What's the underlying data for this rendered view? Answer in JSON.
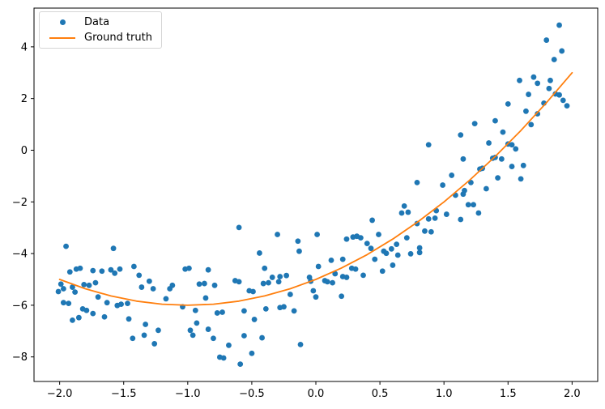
{
  "chart_data": {
    "type": "scatter",
    "title": "",
    "xlabel": "",
    "ylabel": "",
    "xlim": [
      -2.2,
      2.2
    ],
    "ylim": [
      -8.95,
      5.5
    ],
    "grid": false,
    "axis_color": "#000000",
    "x_ticks": [
      {
        "v": -2.0,
        "label": "−2.0"
      },
      {
        "v": -1.5,
        "label": "−1.5"
      },
      {
        "v": -1.0,
        "label": "−1.0"
      },
      {
        "v": -0.5,
        "label": "−0.5"
      },
      {
        "v": 0.0,
        "label": "0.0"
      },
      {
        "v": 0.5,
        "label": "0.5"
      },
      {
        "v": 1.0,
        "label": "1.0"
      },
      {
        "v": 1.5,
        "label": "1.5"
      },
      {
        "v": 2.0,
        "label": "2.0"
      }
    ],
    "y_ticks": [
      {
        "v": 4,
        "label": "4"
      },
      {
        "v": 2,
        "label": "2"
      },
      {
        "v": 0,
        "label": "0"
      },
      {
        "v": -2,
        "label": "−2"
      },
      {
        "v": -4,
        "label": "−4"
      },
      {
        "v": -6,
        "label": "−6"
      },
      {
        "v": -8,
        "label": "−8"
      }
    ],
    "legend": {
      "position": "upper left",
      "entries": [
        {
          "label": "Data",
          "type": "marker",
          "color": "#1f77b4"
        },
        {
          "label": "Ground truth",
          "type": "line",
          "color": "#ff7f0e"
        }
      ]
    },
    "series": [
      {
        "name": "Data",
        "type": "scatter",
        "color": "#1f77b4",
        "marker_radius": 3.4,
        "points": [
          [
            -1.92,
            -4.71
          ],
          [
            -1.87,
            -4.6
          ],
          [
            -1.84,
            -4.57
          ],
          [
            -1.74,
            -4.66
          ],
          [
            -1.67,
            -4.68
          ],
          [
            -1.6,
            -4.63
          ],
          [
            -1.57,
            -4.76
          ],
          [
            -1.53,
            -4.6
          ],
          [
            -1.42,
            -4.5
          ],
          [
            -1.38,
            -4.84
          ],
          [
            -1.99,
            -5.18
          ],
          [
            -2.01,
            -5.47
          ],
          [
            -1.97,
            -5.36
          ],
          [
            -1.9,
            -5.3
          ],
          [
            -1.88,
            -5.49
          ],
          [
            -1.81,
            -5.2
          ],
          [
            -1.77,
            -5.23
          ],
          [
            -1.72,
            -5.13
          ],
          [
            -1.36,
            -5.3
          ],
          [
            -1.3,
            -5.07
          ],
          [
            -1.27,
            -5.36
          ],
          [
            -1.14,
            -5.36
          ],
          [
            -1.12,
            -5.23
          ],
          [
            -1.97,
            -5.9
          ],
          [
            -1.93,
            -5.93
          ],
          [
            -1.7,
            -5.68
          ],
          [
            -1.63,
            -5.9
          ],
          [
            -1.55,
            -6.01
          ],
          [
            -1.52,
            -5.96
          ],
          [
            -1.47,
            -5.93
          ],
          [
            -1.17,
            -5.75
          ],
          [
            -1.82,
            -6.14
          ],
          [
            -1.79,
            -6.2
          ],
          [
            -1.74,
            -6.32
          ],
          [
            -1.65,
            -6.45
          ],
          [
            -1.85,
            -6.48
          ],
          [
            -1.9,
            -6.58
          ],
          [
            -1.46,
            -6.53
          ],
          [
            -1.33,
            -6.74
          ],
          [
            -1.23,
            -6.97
          ],
          [
            -1.34,
            -7.16
          ],
          [
            -1.43,
            -7.28
          ],
          [
            -1.26,
            -7.49
          ],
          [
            -1.02,
            -4.6
          ],
          [
            -0.99,
            -4.57
          ],
          [
            -0.84,
            -4.63
          ],
          [
            -0.91,
            -5.18
          ],
          [
            -0.87,
            -5.16
          ],
          [
            -0.79,
            -5.23
          ],
          [
            -0.63,
            -5.05
          ],
          [
            -0.6,
            -5.09
          ],
          [
            -0.4,
            -4.57
          ],
          [
            -0.41,
            -5.16
          ],
          [
            -0.37,
            -5.13
          ],
          [
            -0.34,
            -4.92
          ],
          [
            -0.29,
            -5.09
          ],
          [
            -0.28,
            -4.89
          ],
          [
            -0.23,
            -4.85
          ],
          [
            -0.05,
            -4.92
          ],
          [
            -0.04,
            -5.07
          ],
          [
            -0.52,
            -5.44
          ],
          [
            -0.49,
            -5.47
          ],
          [
            -1.04,
            -6.06
          ],
          [
            -0.94,
            -6.2
          ],
          [
            -0.86,
            -5.72
          ],
          [
            -0.77,
            -6.3
          ],
          [
            -0.73,
            -6.27
          ],
          [
            -0.56,
            -6.22
          ],
          [
            -0.39,
            -6.14
          ],
          [
            -0.28,
            -6.09
          ],
          [
            -0.25,
            -6.06
          ],
          [
            -0.17,
            -6.22
          ],
          [
            -0.93,
            -6.69
          ],
          [
            -0.84,
            -6.93
          ],
          [
            -0.98,
            -6.97
          ],
          [
            -0.96,
            -7.16
          ],
          [
            -0.8,
            -7.28
          ],
          [
            -0.68,
            -7.55
          ],
          [
            -0.56,
            -7.18
          ],
          [
            -0.48,
            -6.55
          ],
          [
            -0.42,
            -7.26
          ],
          [
            -0.75,
            -8.01
          ],
          [
            -0.72,
            -8.04
          ],
          [
            -0.59,
            -8.28
          ],
          [
            -0.5,
            -7.86
          ],
          [
            -0.12,
            -7.52
          ],
          [
            -0.2,
            -5.58
          ],
          [
            0.02,
            -4.5
          ],
          [
            0.12,
            -4.26
          ],
          [
            0.28,
            -4.57
          ],
          [
            0.31,
            -4.6
          ],
          [
            0.07,
            -5.05
          ],
          [
            0.09,
            -5.09
          ],
          [
            0.13,
            -5.13
          ],
          [
            0.15,
            -4.78
          ],
          [
            0.21,
            -4.89
          ],
          [
            0.24,
            -4.92
          ],
          [
            0.37,
            -4.84
          ],
          [
            0.52,
            -4.68
          ],
          [
            0.6,
            -4.45
          ],
          [
            -0.02,
            -5.44
          ],
          [
            0.0,
            -5.68
          ],
          [
            0.2,
            -5.65
          ],
          [
            0.21,
            -4.22
          ],
          [
            0.46,
            -4.22
          ],
          [
            -1.95,
            -3.72
          ],
          [
            -1.58,
            -3.8
          ],
          [
            -0.6,
            -2.99
          ],
          [
            -0.3,
            -3.26
          ],
          [
            -0.14,
            -3.52
          ],
          [
            -0.13,
            -3.91
          ],
          [
            -0.44,
            -3.98
          ],
          [
            0.88,
            0.21
          ],
          [
            0.79,
            -1.25
          ],
          [
            0.99,
            -1.35
          ],
          [
            1.06,
            -0.97
          ],
          [
            0.69,
            -2.16
          ],
          [
            0.67,
            -2.43
          ],
          [
            0.72,
            -2.4
          ],
          [
            0.94,
            -2.34
          ],
          [
            0.88,
            -2.66
          ],
          [
            0.93,
            -2.63
          ],
          [
            1.02,
            -2.48
          ],
          [
            0.44,
            -2.71
          ],
          [
            0.79,
            -2.84
          ],
          [
            0.85,
            -3.13
          ],
          [
            0.9,
            -3.16
          ],
          [
            0.24,
            -3.44
          ],
          [
            0.29,
            -3.36
          ],
          [
            0.32,
            -3.33
          ],
          [
            0.35,
            -3.39
          ],
          [
            0.01,
            -3.26
          ],
          [
            0.4,
            -3.61
          ],
          [
            0.43,
            -3.8
          ],
          [
            0.49,
            -3.26
          ],
          [
            0.53,
            -3.91
          ],
          [
            0.55,
            -3.99
          ],
          [
            0.59,
            -3.82
          ],
          [
            0.63,
            -3.64
          ],
          [
            0.71,
            -3.39
          ],
          [
            0.64,
            -4.06
          ],
          [
            0.81,
            -3.78
          ],
          [
            0.81,
            -3.96
          ],
          [
            0.74,
            -4.01
          ],
          [
            1.35,
            0.28
          ],
          [
            1.5,
            0.24
          ],
          [
            1.53,
            0.21
          ],
          [
            1.56,
            0.05
          ],
          [
            1.15,
            -0.34
          ],
          [
            1.38,
            -0.31
          ],
          [
            1.4,
            -0.28
          ],
          [
            1.45,
            -0.34
          ],
          [
            1.28,
            -0.73
          ],
          [
            1.3,
            -0.7
          ],
          [
            1.53,
            -0.63
          ],
          [
            1.62,
            -0.59
          ],
          [
            1.42,
            -1.07
          ],
          [
            1.6,
            -1.11
          ],
          [
            1.21,
            -1.25
          ],
          [
            1.33,
            -1.49
          ],
          [
            1.16,
            -1.56
          ],
          [
            1.09,
            -1.74
          ],
          [
            1.15,
            -1.7
          ],
          [
            1.19,
            -2.11
          ],
          [
            1.23,
            -2.11
          ],
          [
            1.27,
            -2.43
          ],
          [
            1.13,
            -2.68
          ],
          [
            1.13,
            0.59
          ],
          [
            1.46,
            0.7
          ],
          [
            1.9,
            4.84
          ],
          [
            1.8,
            4.26
          ],
          [
            1.92,
            3.84
          ],
          [
            1.86,
            3.51
          ],
          [
            1.59,
            2.7
          ],
          [
            1.7,
            2.83
          ],
          [
            1.73,
            2.59
          ],
          [
            1.83,
            2.7
          ],
          [
            1.66,
            2.16
          ],
          [
            1.82,
            2.39
          ],
          [
            1.87,
            2.18
          ],
          [
            1.9,
            2.14
          ],
          [
            1.78,
            1.82
          ],
          [
            1.93,
            1.93
          ],
          [
            1.96,
            1.72
          ],
          [
            1.5,
            1.79
          ],
          [
            1.64,
            1.51
          ],
          [
            1.73,
            1.41
          ],
          [
            1.68,
            0.99
          ],
          [
            1.4,
            1.14
          ],
          [
            1.24,
            1.03
          ]
        ]
      },
      {
        "name": "Ground truth",
        "type": "line",
        "color": "#ff7f0e",
        "line_width": 1.8,
        "equation": "y = x^2 + 2x - 5",
        "points": [
          [
            -2.0,
            -5.0
          ],
          [
            -1.8,
            -5.36
          ],
          [
            -1.6,
            -5.64
          ],
          [
            -1.4,
            -5.84
          ],
          [
            -1.2,
            -5.96
          ],
          [
            -1.0,
            -6.0
          ],
          [
            -0.8,
            -5.96
          ],
          [
            -0.6,
            -5.84
          ],
          [
            -0.4,
            -5.64
          ],
          [
            -0.2,
            -5.36
          ],
          [
            0.0,
            -5.0
          ],
          [
            0.2,
            -4.56
          ],
          [
            0.4,
            -4.04
          ],
          [
            0.6,
            -3.44
          ],
          [
            0.8,
            -2.76
          ],
          [
            1.0,
            -2.0
          ],
          [
            1.2,
            -1.16
          ],
          [
            1.4,
            -0.24
          ],
          [
            1.6,
            0.76
          ],
          [
            1.8,
            1.84
          ],
          [
            2.0,
            3.0
          ]
        ]
      }
    ]
  }
}
